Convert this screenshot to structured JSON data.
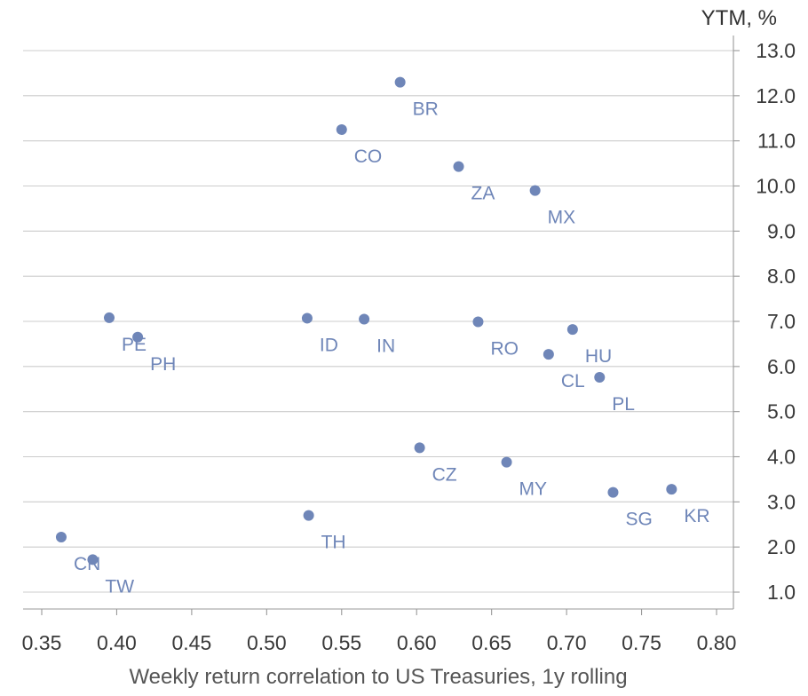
{
  "chart_data": {
    "type": "scatter",
    "title": "",
    "xlabel": "Weekly return correlation to US Treasuries, 1y rolling",
    "ylabel": "YTM, %",
    "xlim": [
      0.34,
      0.81
    ],
    "ylim": [
      0.65,
      13.25
    ],
    "x_ticks": [
      0.35,
      0.4,
      0.45,
      0.5,
      0.55,
      0.6,
      0.65,
      0.7,
      0.75,
      0.8
    ],
    "x_tick_labels": [
      "0.35",
      "0.40",
      "0.45",
      "0.50",
      "0.55",
      "0.60",
      "0.65",
      "0.70",
      "0.75",
      "0.80"
    ],
    "y_ticks": [
      1,
      2,
      3,
      4,
      5,
      6,
      7,
      8,
      9,
      10,
      11,
      12,
      13
    ],
    "y_tick_labels": [
      "1.0",
      "2.0",
      "3.0",
      "4.0",
      "5.0",
      "6.0",
      "7.0",
      "8.0",
      "9.0",
      "10.0",
      "11.0",
      "12.0",
      "13.0"
    ],
    "y_axis_side": "right",
    "grid": "horizontal",
    "legend": "none",
    "point_color": "#6f86b8",
    "points": [
      {
        "label": "BR",
        "x": 0.589,
        "y": 12.3
      },
      {
        "label": "CO",
        "x": 0.55,
        "y": 11.25
      },
      {
        "label": "ZA",
        "x": 0.628,
        "y": 10.43
      },
      {
        "label": "MX",
        "x": 0.679,
        "y": 9.9
      },
      {
        "label": "PE",
        "x": 0.395,
        "y": 7.08
      },
      {
        "label": "PH",
        "x": 0.414,
        "y": 6.65
      },
      {
        "label": "ID",
        "x": 0.527,
        "y": 7.07
      },
      {
        "label": "IN",
        "x": 0.565,
        "y": 7.05
      },
      {
        "label": "RO",
        "x": 0.641,
        "y": 6.99
      },
      {
        "label": "HU",
        "x": 0.704,
        "y": 6.82
      },
      {
        "label": "CL",
        "x": 0.688,
        "y": 6.27
      },
      {
        "label": "PL",
        "x": 0.722,
        "y": 5.76
      },
      {
        "label": "CZ",
        "x": 0.602,
        "y": 4.2
      },
      {
        "label": "MY",
        "x": 0.66,
        "y": 3.88
      },
      {
        "label": "SG",
        "x": 0.731,
        "y": 3.21
      },
      {
        "label": "KR",
        "x": 0.77,
        "y": 3.28
      },
      {
        "label": "TH",
        "x": 0.528,
        "y": 2.7
      },
      {
        "label": "CN",
        "x": 0.363,
        "y": 2.22
      },
      {
        "label": "TW",
        "x": 0.384,
        "y": 1.72
      }
    ]
  }
}
